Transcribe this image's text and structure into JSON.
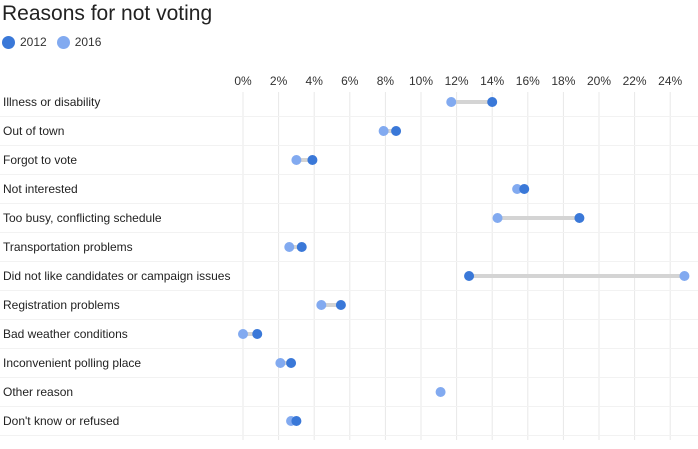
{
  "chart_data": {
    "type": "dot",
    "title": "Reasons for not voting",
    "xlabel": "",
    "ylabel": "",
    "xlim": [
      0,
      25
    ],
    "x_ticks": [
      0,
      2,
      4,
      6,
      8,
      10,
      12,
      14,
      16,
      18,
      20,
      22,
      24
    ],
    "x_tick_labels": [
      "0%",
      "2%",
      "4%",
      "6%",
      "8%",
      "10%",
      "12%",
      "14%",
      "16%",
      "18%",
      "20%",
      "22%",
      "24%"
    ],
    "grid": true,
    "legend_placement": "top-left",
    "categories": [
      "Illness or disability",
      "Out of town",
      "Forgot to vote",
      "Not interested",
      "Too busy, conflicting schedule",
      "Transportation problems",
      "Did not like candidates or campaign issues",
      "Registration problems",
      "Bad weather conditions",
      "Inconvenient polling place",
      "Other reason",
      "Don't know or refused"
    ],
    "series": [
      {
        "name": "2012",
        "color": "#3a78d8",
        "values": [
          14.0,
          8.6,
          3.9,
          15.8,
          18.9,
          3.3,
          12.7,
          5.5,
          0.8,
          2.7,
          null,
          3.0
        ]
      },
      {
        "name": "2016",
        "color": "#82aaf0",
        "values": [
          11.7,
          7.9,
          3.0,
          15.4,
          14.3,
          2.6,
          24.8,
          4.4,
          0.0,
          2.1,
          11.1,
          2.7
        ]
      }
    ],
    "connector_color": "#d4d4d4",
    "gridline_color": "#e8e8e8"
  }
}
